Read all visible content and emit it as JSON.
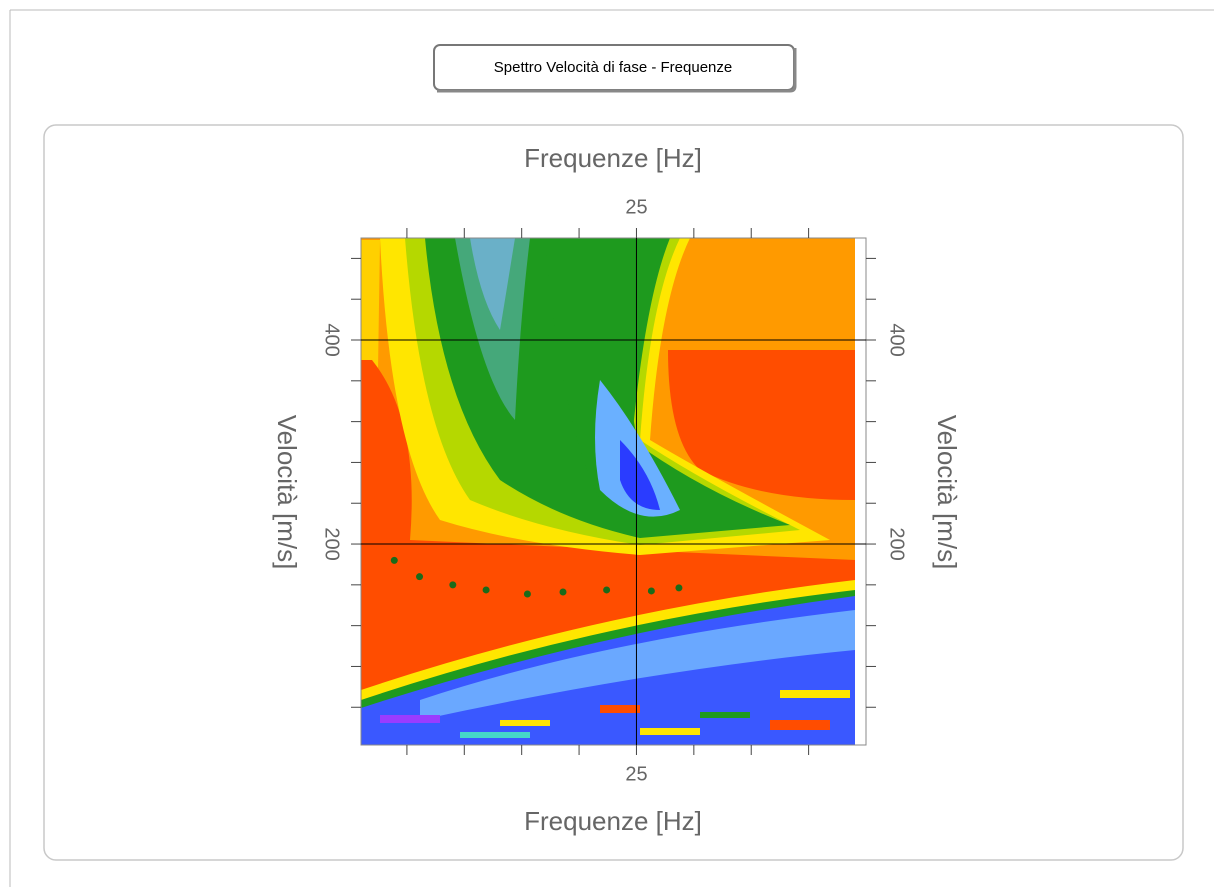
{
  "header": {
    "title": "Spettro Velocità di fase - Frequenze"
  },
  "chart_data": {
    "type": "scatter",
    "xlabel": "Frequenze [Hz]",
    "ylabel": "Velocità [m/s]",
    "x": [
      3.9,
      6.1,
      9.0,
      11.9,
      15.5,
      18.6,
      22.4,
      26.3,
      28.7
    ],
    "values": [
      184,
      168,
      160,
      155,
      151,
      153,
      155,
      154,
      157
    ],
    "color": "#1a6b1a",
    "xlim": [
      1,
      45
    ],
    "xticks": [
      25
    ],
    "xminor_ticks": [
      5,
      10,
      15,
      20,
      30,
      35,
      40
    ],
    "ylim": [
      3,
      500
    ],
    "yticks": [
      200,
      400
    ],
    "yminor_ticks": [
      40,
      80,
      120,
      160,
      240,
      280,
      320,
      360,
      440,
      480
    ],
    "grid": true
  }
}
